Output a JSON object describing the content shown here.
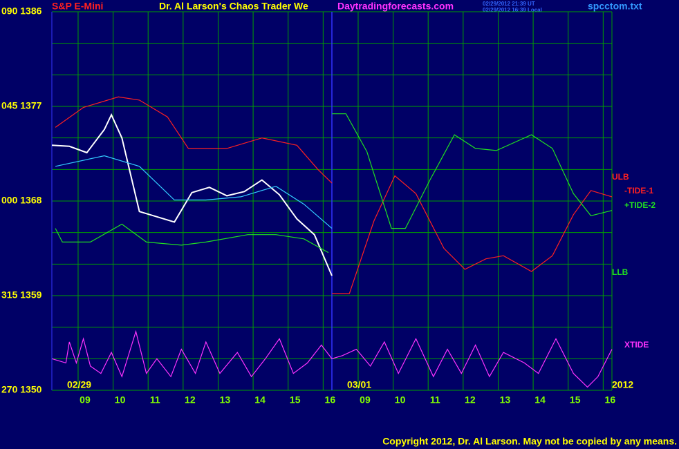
{
  "chart_data": {
    "type": "line",
    "symbol": "S&P E-Mini",
    "title": "Dr. Al Larson's Chaos Trader We",
    "subtitle": "Daytradingforecasts.com",
    "timestamps": [
      "02/29/2012 21:39 UT",
      "02/29/2012 16:39 Local"
    ],
    "file": "spcctom.txt",
    "copyright": "Copyright 2012, Dr. Al Larson. May not be copied by any means.",
    "year": "2012",
    "days": [
      {
        "label": "02/29",
        "x": 0
      },
      {
        "label": "03/01",
        "x": 8
      }
    ],
    "xlim": [
      0,
      16
    ],
    "ylim": [
      1350,
      1386
    ],
    "yticks": [
      {
        "value": 1386,
        "label": "090 1386"
      },
      {
        "value": 1377,
        "label": "045 1377"
      },
      {
        "value": 1368,
        "label": "000 1368"
      },
      {
        "value": 1359,
        "label": "315 1359"
      },
      {
        "value": 1350,
        "label": "270 1350"
      }
    ],
    "ygrid": [
      1353,
      1356,
      1359,
      1362,
      1365,
      1368,
      1371,
      1374,
      1377,
      1380,
      1383
    ],
    "xticks": [
      {
        "value": 0.75,
        "label": "09"
      },
      {
        "value": 1.75,
        "label": "10"
      },
      {
        "value": 2.75,
        "label": "11"
      },
      {
        "value": 3.75,
        "label": "12"
      },
      {
        "value": 4.75,
        "label": "13"
      },
      {
        "value": 5.75,
        "label": "14"
      },
      {
        "value": 6.75,
        "label": "15"
      },
      {
        "value": 7.75,
        "label": "16"
      },
      {
        "value": 8.75,
        "label": "09"
      },
      {
        "value": 9.75,
        "label": "10"
      },
      {
        "value": 10.75,
        "label": "11"
      },
      {
        "value": 11.75,
        "label": "12"
      },
      {
        "value": 12.75,
        "label": "13"
      },
      {
        "value": 13.75,
        "label": "14"
      },
      {
        "value": 14.75,
        "label": "15"
      },
      {
        "value": 15.75,
        "label": "16"
      }
    ],
    "grid": true,
    "series": [
      {
        "color": "#ffffff",
        "x": [
          0,
          0.5,
          1,
          1.5,
          1.7,
          2,
          2.5,
          3,
          3.5,
          4,
          4.5,
          5,
          5.5,
          6,
          6.5,
          7,
          7.5,
          8
        ],
        "values": [
          1373.3,
          1373.2,
          1372.6,
          1374.8,
          1376.2,
          1374.0,
          1367.0,
          1366.5,
          1366.0,
          1368.8,
          1369.3,
          1368.5,
          1368.9,
          1370.0,
          1368.6,
          1366.3,
          1364.8,
          1360.9
        ]
      },
      {
        "color": "#33ccff",
        "x": [
          0.1,
          1.5,
          2.5,
          3.5,
          4.4,
          5.4,
          6.4,
          7.2,
          8.0
        ],
        "values": [
          1371.3,
          1372.3,
          1371.3,
          1368.1,
          1368.1,
          1368.4,
          1369.4,
          1367.7,
          1365.4
        ]
      },
      {
        "name": "ULB",
        "color": "#ff2020",
        "x": [
          0.1,
          0.9,
          1.9,
          2.5,
          3.3,
          3.9,
          5.0,
          6.0,
          7.0,
          7.6,
          8.0
        ],
        "values": [
          1375.0,
          1376.9,
          1377.9,
          1377.6,
          1376.0,
          1373.0,
          1373.0,
          1374.0,
          1373.3,
          1371.0,
          1369.7
        ]
      },
      {
        "name": "LLB",
        "color": "#20e020",
        "x": [
          0.1,
          0.3,
          1.1,
          2.0,
          2.7,
          3.7,
          4.4,
          5.6,
          6.4,
          7.2,
          7.9
        ],
        "values": [
          1365.4,
          1364.1,
          1364.1,
          1365.8,
          1364.1,
          1363.8,
          1364.1,
          1364.8,
          1364.8,
          1364.4,
          1363.1
        ]
      },
      {
        "name": "-TIDE-1",
        "color": "#ff2020",
        "x": [
          8.0,
          8.5,
          9.2,
          9.8,
          10.4,
          11.2,
          11.8,
          12.4,
          12.9,
          13.7,
          14.3,
          14.9,
          15.4,
          16.0
        ],
        "values": [
          1359.2,
          1359.2,
          1366.1,
          1370.4,
          1368.7,
          1363.5,
          1361.5,
          1362.5,
          1362.8,
          1361.3,
          1362.8,
          1366.7,
          1369.0,
          1368.4
        ]
      },
      {
        "name": "+TIDE-2",
        "color": "#20e020",
        "x": [
          8.0,
          8.4,
          9.0,
          9.7,
          10.1,
          10.8,
          11.5,
          12.1,
          12.7,
          13.7,
          14.3,
          14.9,
          15.4,
          16.0
        ],
        "values": [
          1376.3,
          1376.3,
          1372.7,
          1365.4,
          1365.4,
          1370.0,
          1374.3,
          1373.0,
          1372.8,
          1374.3,
          1373.0,
          1368.7,
          1366.6,
          1367.1
        ]
      },
      {
        "name": "XTIDE",
        "color": "#ff33ff",
        "x": [
          0,
          0.4,
          0.5,
          0.7,
          0.9,
          1.1,
          1.4,
          1.7,
          2.0,
          2.4,
          2.7,
          3.0,
          3.4,
          3.7,
          4.1,
          4.4,
          4.8,
          5.3,
          5.7,
          6.1,
          6.5,
          6.9,
          7.3,
          7.7,
          8.0,
          8.3,
          8.7,
          9.1,
          9.5,
          9.9,
          10.4,
          10.9,
          11.3,
          11.7,
          12.1,
          12.5,
          12.9,
          13.5,
          13.9,
          14.4,
          14.9,
          15.3,
          15.6,
          16.0
        ],
        "values": [
          1353.0,
          1352.6,
          1354.6,
          1352.6,
          1354.9,
          1352.3,
          1351.6,
          1353.6,
          1351.3,
          1355.6,
          1351.6,
          1353.0,
          1351.3,
          1353.9,
          1351.6,
          1354.6,
          1351.6,
          1353.6,
          1351.3,
          1353.0,
          1354.9,
          1351.6,
          1352.6,
          1354.3,
          1353.0,
          1353.3,
          1353.9,
          1352.3,
          1354.6,
          1351.6,
          1354.9,
          1351.3,
          1353.9,
          1351.6,
          1354.3,
          1351.3,
          1353.6,
          1352.6,
          1351.6,
          1354.9,
          1351.6,
          1350.3,
          1351.3,
          1353.9
        ]
      }
    ]
  }
}
